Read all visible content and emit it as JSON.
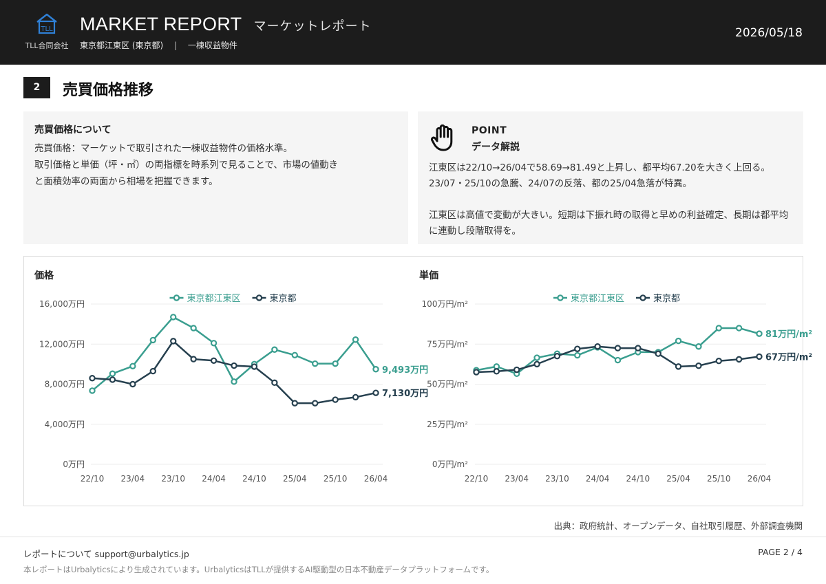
{
  "header": {
    "logo_text": "TLL合同会社",
    "title": "MARKET REPORT",
    "title_jp": "マーケットレポート",
    "area": "東京都江東区 (東京都)",
    "separator": "|",
    "property_type": "一棟収益物件",
    "date": "2026/05/18"
  },
  "section": {
    "number": "2",
    "title": "売買価格推移"
  },
  "about_box": {
    "heading": "売買価格について",
    "lines": [
      "売買価格：マーケットで取引された一棟収益物件の価格水準。",
      "取引価格と単価（坪・㎡）の両指標を時系列で見ることで、市場の値動き",
      "と面積効率の両面から相場を把握できます。"
    ]
  },
  "point_box": {
    "label": "POINT",
    "title": "データ解説",
    "paragraphs": [
      "江東区は22/10→26/04で58.69→81.49と上昇し、都平均67.20を大きく上回る。23/07・25/10の急騰、24/07の反落、都の25/04急落が特異。",
      "江東区は高値で変動が大きい。短期は下振れ時の取得と早めの利益確定、長期は都平均に連動し段階取得を。"
    ]
  },
  "colors": {
    "koto": "#3a9e8f",
    "tokyo": "#26404f",
    "grid": "#ececec",
    "axis_text": "#555555"
  },
  "chart_data": [
    {
      "type": "line",
      "title": "価格",
      "x": [
        "22/10",
        "23/01",
        "23/04",
        "23/07",
        "23/10",
        "24/01",
        "24/04",
        "24/07",
        "24/10",
        "25/01",
        "25/04",
        "25/07",
        "25/10",
        "26/01",
        "26/04"
      ],
      "xticks": [
        "22/10",
        "23/04",
        "23/10",
        "24/04",
        "24/10",
        "25/04",
        "25/10",
        "26/04"
      ],
      "yticks": [
        0,
        4000,
        8000,
        12000,
        16000
      ],
      "ytick_labels": [
        "0万円",
        "4,000万円",
        "8,000万円",
        "12,000万円",
        "16,000万円"
      ],
      "ylim": [
        0,
        16000
      ],
      "grid": true,
      "legend_position": "top-center",
      "series": [
        {
          "name": "東京都江東区",
          "color": "#3a9e8f",
          "end_label": "9,493万円",
          "values": [
            7350,
            9050,
            9800,
            12400,
            14700,
            13600,
            12100,
            8250,
            10000,
            11450,
            10900,
            10050,
            10050,
            12450,
            9493
          ]
        },
        {
          "name": "東京都",
          "color": "#26404f",
          "end_label": "7,130万円",
          "values": [
            8600,
            8450,
            8000,
            9300,
            12300,
            10500,
            10350,
            9850,
            9750,
            8150,
            6100,
            6100,
            6450,
            6700,
            7130
          ]
        }
      ]
    },
    {
      "type": "line",
      "title": "単価",
      "x": [
        "22/10",
        "23/01",
        "23/04",
        "23/07",
        "23/10",
        "24/01",
        "24/04",
        "24/07",
        "24/10",
        "25/01",
        "25/04",
        "25/07",
        "25/10",
        "26/01",
        "26/04"
      ],
      "xticks": [
        "22/10",
        "23/04",
        "23/10",
        "24/04",
        "24/10",
        "25/04",
        "25/10",
        "26/04"
      ],
      "yticks": [
        0,
        25,
        50,
        75,
        100
      ],
      "ytick_labels": [
        "0万円/m²",
        "25万円/m²",
        "50万円/m²",
        "75万円/m²",
        "100万円/m²"
      ],
      "ylim": [
        0,
        100
      ],
      "grid": true,
      "legend_position": "top-center",
      "series": [
        {
          "name": "東京都江東区",
          "color": "#3a9e8f",
          "end_label": "81万円/m²",
          "values": [
            58.69,
            61,
            56.5,
            66.5,
            69,
            68,
            73,
            65,
            70,
            70,
            77,
            73.5,
            85,
            85,
            81.49
          ]
        },
        {
          "name": "東京都",
          "color": "#26404f",
          "end_label": "67万円/m²",
          "values": [
            57.5,
            58,
            59,
            62.5,
            67.5,
            72,
            73.5,
            72.5,
            72.5,
            69,
            61,
            61.5,
            64.5,
            65.5,
            67.2
          ]
        }
      ]
    }
  ],
  "source": "出典：政府統計、オープンデータ、自社取引履歴、外部調査機関",
  "footer": {
    "contact": "レポートについて support@urbalytics.jp",
    "page": "PAGE 2 / 4",
    "note": "本レポートはUrbalyticsにより生成されています。UrbalyticsはTLLが提供するAI駆動型の日本不動産データプラットフォームです。"
  }
}
